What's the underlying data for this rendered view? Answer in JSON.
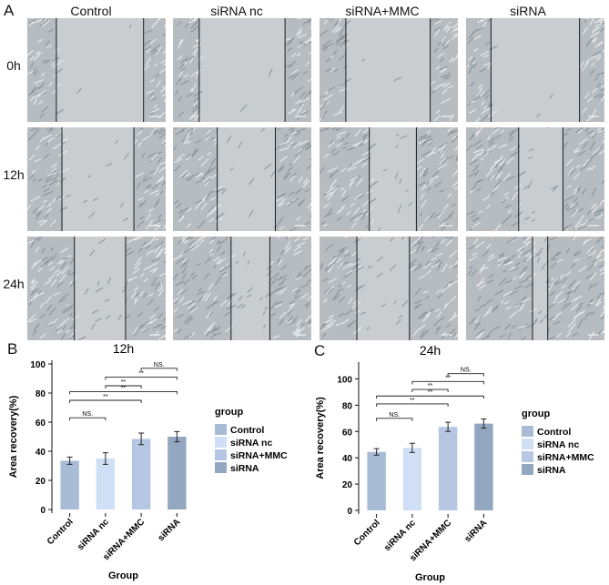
{
  "panel_labels": {
    "a": "A",
    "b": "B",
    "c": "C"
  },
  "micrograph": {
    "columns": [
      "Control",
      "siRNA nc",
      "siRNA+MMC",
      "siRNA"
    ],
    "rows": [
      "0h",
      "12h",
      "24h"
    ]
  },
  "colors": {
    "Control": "#a9bcd6",
    "siRNA nc": "#cfe0f6",
    "siRNA+MMC": "#b6c7e3",
    "siRNA": "#94a7c1"
  },
  "chart_data": [
    {
      "type": "bar",
      "title": "12h",
      "categories": [
        "Control",
        "siRNA nc",
        "siRNA+MMC",
        "siRNA"
      ],
      "values": [
        33.5,
        35,
        48.5,
        50
      ],
      "errors": [
        2.5,
        4,
        4,
        3.5
      ],
      "xlabel": "Group",
      "ylabel": "Area recovery(%)",
      "ylim": [
        0,
        100
      ],
      "yticks": [
        0,
        20,
        40,
        60,
        80,
        100
      ],
      "legend_title": "group",
      "legend": [
        "Control",
        "siRNA nc",
        "siRNA+MMC",
        "siRNA"
      ],
      "legend_position": "right",
      "grid": false,
      "annotations": [
        {
          "from": "Control",
          "to": "siRNA nc",
          "label": "NS.",
          "y": 63
        },
        {
          "from": "Control",
          "to": "siRNA+MMC",
          "label": "**",
          "y": 75
        },
        {
          "from": "Control",
          "to": "siRNA",
          "label": "**",
          "y": 81
        },
        {
          "from": "siRNA nc",
          "to": "siRNA+MMC",
          "label": "**",
          "y": 85
        },
        {
          "from": "siRNA nc",
          "to": "siRNA",
          "label": "**",
          "y": 91
        },
        {
          "from": "siRNA+MMC",
          "to": "siRNA",
          "label": "NS.",
          "y": 97
        }
      ]
    },
    {
      "type": "bar",
      "title": "24h",
      "categories": [
        "Control",
        "siRNA nc",
        "siRNA+MMC",
        "siRNA"
      ],
      "values": [
        44.5,
        47.5,
        63.5,
        66
      ],
      "errors": [
        2.5,
        3.5,
        3.5,
        3.5
      ],
      "xlabel": "Group",
      "ylabel": "Area recovery(%)",
      "ylim": [
        0,
        110
      ],
      "yticks": [
        0,
        20,
        40,
        60,
        80,
        100
      ],
      "legend_title": "group",
      "legend": [
        "Control",
        "siRNA nc",
        "siRNA+MMC",
        "siRNA"
      ],
      "legend_position": "right",
      "grid": false,
      "annotations": [
        {
          "from": "Control",
          "to": "siRNA nc",
          "label": "NS.",
          "y": 70
        },
        {
          "from": "Control",
          "to": "siRNA+MMC",
          "label": "**",
          "y": 81
        },
        {
          "from": "Control",
          "to": "siRNA",
          "label": "**",
          "y": 87
        },
        {
          "from": "siRNA nc",
          "to": "siRNA+MMC",
          "label": "**",
          "y": 92
        },
        {
          "from": "siRNA nc",
          "to": "siRNA",
          "label": "**",
          "y": 98
        },
        {
          "from": "siRNA+MMC",
          "to": "siRNA",
          "label": "NS.",
          "y": 104
        }
      ]
    }
  ]
}
